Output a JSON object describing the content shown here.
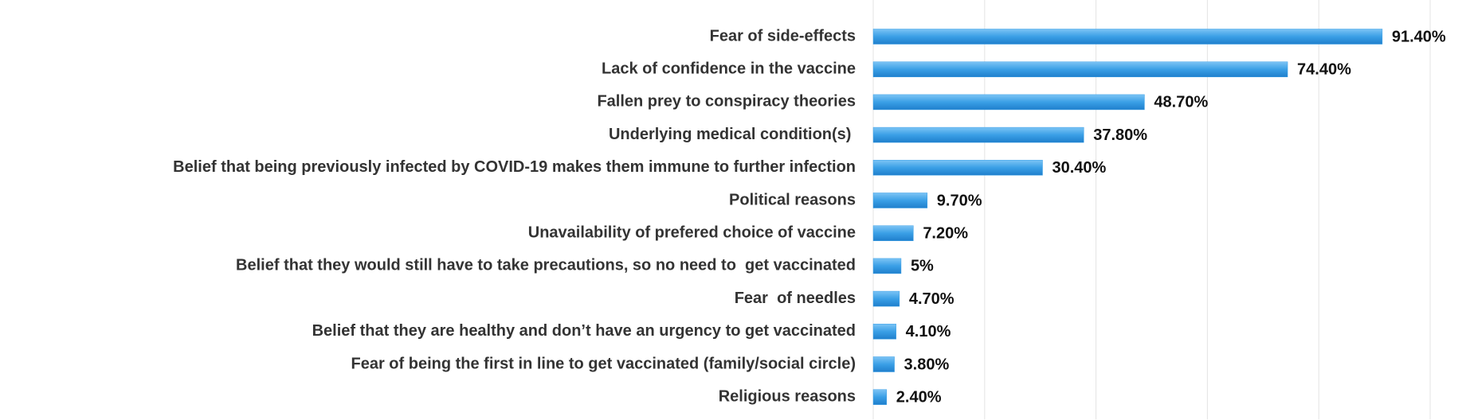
{
  "chart_data": {
    "type": "hbar",
    "categories": [
      "Fear of side-effects",
      "Lack of confidence in the vaccine",
      "Fallen prey to conspiracy theories",
      "Underlying medical condition(s) ",
      "Belief that being previously infected by COVID-19 makes them immune to further infection",
      "Political reasons",
      "Unavailability of prefered choice of vaccine",
      "Belief that they would still have to take precautions, so no need to  get vaccinated",
      "Fear  of needles",
      "Belief that they are healthy and don’t have an urgency to get vaccinated",
      "Fear of being the first in line to get vaccinated (family/social circle)",
      "Religious reasons"
    ],
    "values": [
      91.4,
      74.4,
      48.7,
      37.8,
      30.4,
      9.7,
      7.2,
      5,
      4.7,
      4.1,
      3.8,
      2.4
    ],
    "value_labels": [
      "91.40%",
      "74.40%",
      "48.70%",
      "37.80%",
      "30.40%",
      "9.70%",
      "7.20%",
      "5%",
      "4.70%",
      "4.10%",
      "3.80%",
      "2.40%"
    ],
    "color": "#3a9fe6",
    "xlim": [
      0,
      100
    ],
    "xticks": [
      0,
      20,
      40,
      60,
      80,
      100
    ],
    "grid": true
  }
}
